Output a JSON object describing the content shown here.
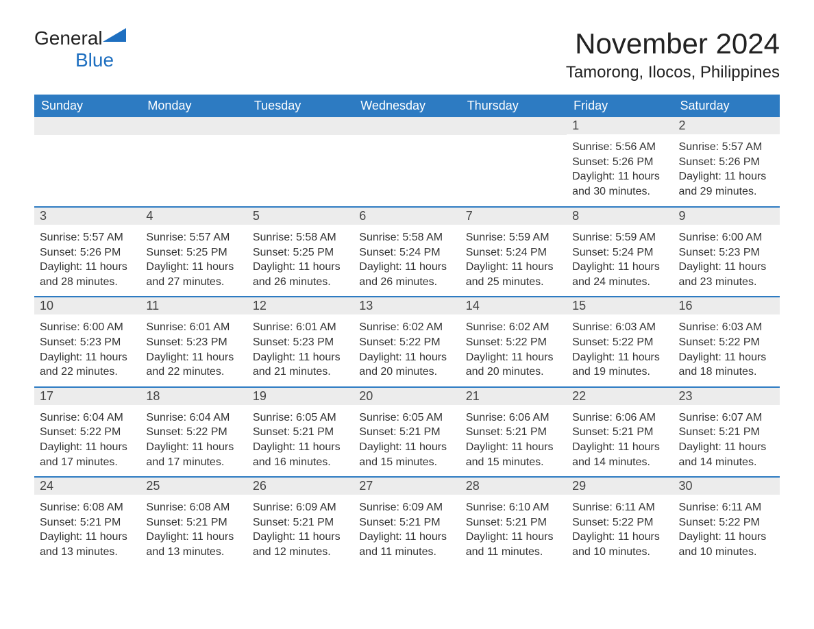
{
  "logo": {
    "text_general": "General",
    "text_blue": "Blue"
  },
  "title": "November 2024",
  "location": "Tamorong, Ilocos, Philippines",
  "colors": {
    "header_bg": "#2d7bc2",
    "header_text": "#ffffff",
    "day_row_bg": "#ececec",
    "day_row_border": "#2d7bc2",
    "body_text": "#333333",
    "logo_blue": "#1e6fc0",
    "page_bg": "#ffffff"
  },
  "weekdays": [
    "Sunday",
    "Monday",
    "Tuesday",
    "Wednesday",
    "Thursday",
    "Friday",
    "Saturday"
  ],
  "weeks": [
    [
      null,
      null,
      null,
      null,
      null,
      {
        "n": "1",
        "sunrise": "5:56 AM",
        "sunset": "5:26 PM",
        "daylight": "11 hours and 30 minutes."
      },
      {
        "n": "2",
        "sunrise": "5:57 AM",
        "sunset": "5:26 PM",
        "daylight": "11 hours and 29 minutes."
      }
    ],
    [
      {
        "n": "3",
        "sunrise": "5:57 AM",
        "sunset": "5:26 PM",
        "daylight": "11 hours and 28 minutes."
      },
      {
        "n": "4",
        "sunrise": "5:57 AM",
        "sunset": "5:25 PM",
        "daylight": "11 hours and 27 minutes."
      },
      {
        "n": "5",
        "sunrise": "5:58 AM",
        "sunset": "5:25 PM",
        "daylight": "11 hours and 26 minutes."
      },
      {
        "n": "6",
        "sunrise": "5:58 AM",
        "sunset": "5:24 PM",
        "daylight": "11 hours and 26 minutes."
      },
      {
        "n": "7",
        "sunrise": "5:59 AM",
        "sunset": "5:24 PM",
        "daylight": "11 hours and 25 minutes."
      },
      {
        "n": "8",
        "sunrise": "5:59 AM",
        "sunset": "5:24 PM",
        "daylight": "11 hours and 24 minutes."
      },
      {
        "n": "9",
        "sunrise": "6:00 AM",
        "sunset": "5:23 PM",
        "daylight": "11 hours and 23 minutes."
      }
    ],
    [
      {
        "n": "10",
        "sunrise": "6:00 AM",
        "sunset": "5:23 PM",
        "daylight": "11 hours and 22 minutes."
      },
      {
        "n": "11",
        "sunrise": "6:01 AM",
        "sunset": "5:23 PM",
        "daylight": "11 hours and 22 minutes."
      },
      {
        "n": "12",
        "sunrise": "6:01 AM",
        "sunset": "5:23 PM",
        "daylight": "11 hours and 21 minutes."
      },
      {
        "n": "13",
        "sunrise": "6:02 AM",
        "sunset": "5:22 PM",
        "daylight": "11 hours and 20 minutes."
      },
      {
        "n": "14",
        "sunrise": "6:02 AM",
        "sunset": "5:22 PM",
        "daylight": "11 hours and 20 minutes."
      },
      {
        "n": "15",
        "sunrise": "6:03 AM",
        "sunset": "5:22 PM",
        "daylight": "11 hours and 19 minutes."
      },
      {
        "n": "16",
        "sunrise": "6:03 AM",
        "sunset": "5:22 PM",
        "daylight": "11 hours and 18 minutes."
      }
    ],
    [
      {
        "n": "17",
        "sunrise": "6:04 AM",
        "sunset": "5:22 PM",
        "daylight": "11 hours and 17 minutes."
      },
      {
        "n": "18",
        "sunrise": "6:04 AM",
        "sunset": "5:22 PM",
        "daylight": "11 hours and 17 minutes."
      },
      {
        "n": "19",
        "sunrise": "6:05 AM",
        "sunset": "5:21 PM",
        "daylight": "11 hours and 16 minutes."
      },
      {
        "n": "20",
        "sunrise": "6:05 AM",
        "sunset": "5:21 PM",
        "daylight": "11 hours and 15 minutes."
      },
      {
        "n": "21",
        "sunrise": "6:06 AM",
        "sunset": "5:21 PM",
        "daylight": "11 hours and 15 minutes."
      },
      {
        "n": "22",
        "sunrise": "6:06 AM",
        "sunset": "5:21 PM",
        "daylight": "11 hours and 14 minutes."
      },
      {
        "n": "23",
        "sunrise": "6:07 AM",
        "sunset": "5:21 PM",
        "daylight": "11 hours and 14 minutes."
      }
    ],
    [
      {
        "n": "24",
        "sunrise": "6:08 AM",
        "sunset": "5:21 PM",
        "daylight": "11 hours and 13 minutes."
      },
      {
        "n": "25",
        "sunrise": "6:08 AM",
        "sunset": "5:21 PM",
        "daylight": "11 hours and 13 minutes."
      },
      {
        "n": "26",
        "sunrise": "6:09 AM",
        "sunset": "5:21 PM",
        "daylight": "11 hours and 12 minutes."
      },
      {
        "n": "27",
        "sunrise": "6:09 AM",
        "sunset": "5:21 PM",
        "daylight": "11 hours and 11 minutes."
      },
      {
        "n": "28",
        "sunrise": "6:10 AM",
        "sunset": "5:21 PM",
        "daylight": "11 hours and 11 minutes."
      },
      {
        "n": "29",
        "sunrise": "6:11 AM",
        "sunset": "5:22 PM",
        "daylight": "11 hours and 10 minutes."
      },
      {
        "n": "30",
        "sunrise": "6:11 AM",
        "sunset": "5:22 PM",
        "daylight": "11 hours and 10 minutes."
      }
    ]
  ],
  "labels": {
    "sunrise": "Sunrise: ",
    "sunset": "Sunset: ",
    "daylight": "Daylight: "
  },
  "fonts": {
    "title_size": 42,
    "location_size": 24,
    "header_size": 18,
    "daynum_size": 18,
    "body_size": 16
  }
}
